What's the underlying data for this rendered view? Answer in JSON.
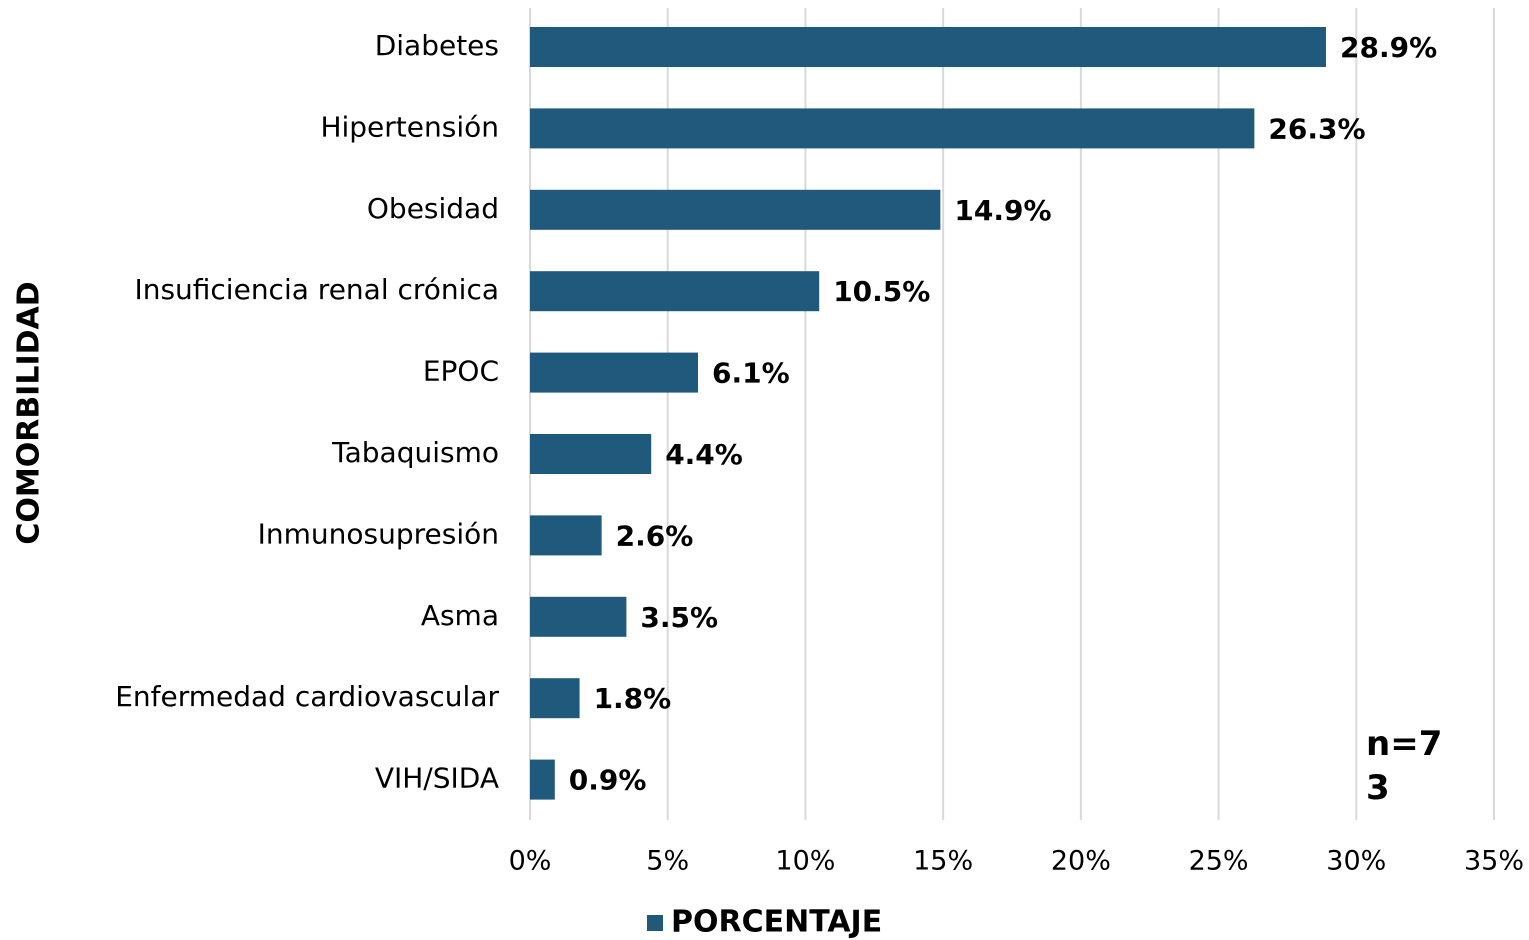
{
  "chart_data": {
    "type": "barh",
    "y_label": "COMORBILIDAD",
    "annotation": "n=73",
    "categories": [
      "Diabetes",
      "Hipertensión",
      "Obesidad",
      "Insuficiencia renal crónica",
      "EPOC",
      "Tabaquismo",
      "Inmunosupresión",
      "Asma",
      "Enfermedad cardiovascular",
      "VIH/SIDA"
    ],
    "series": [
      {
        "name": "PORCENTAJE",
        "color": "#1f5a7c",
        "values": [
          28.9,
          26.3,
          14.9,
          10.5,
          6.1,
          4.4,
          2.6,
          3.5,
          1.8,
          0.9
        ],
        "value_labels": [
          "28.9%",
          "26.3%",
          "14.9%",
          "10.5%",
          "6.1%",
          "4.4%",
          "2.6%",
          "3.5%",
          "1.8%",
          "0.9%"
        ]
      }
    ],
    "xlim": [
      0,
      35
    ],
    "xticks": [
      {
        "value": 0,
        "label": "0%"
      },
      {
        "value": 5,
        "label": "5%"
      },
      {
        "value": 10,
        "label": "10%"
      },
      {
        "value": 15,
        "label": "15%"
      },
      {
        "value": 20,
        "label": "20%"
      },
      {
        "value": 25,
        "label": "25%"
      },
      {
        "value": 30,
        "label": "30%"
      },
      {
        "value": 35,
        "label": "35%"
      }
    ],
    "grid": true,
    "legend": "bottom"
  }
}
